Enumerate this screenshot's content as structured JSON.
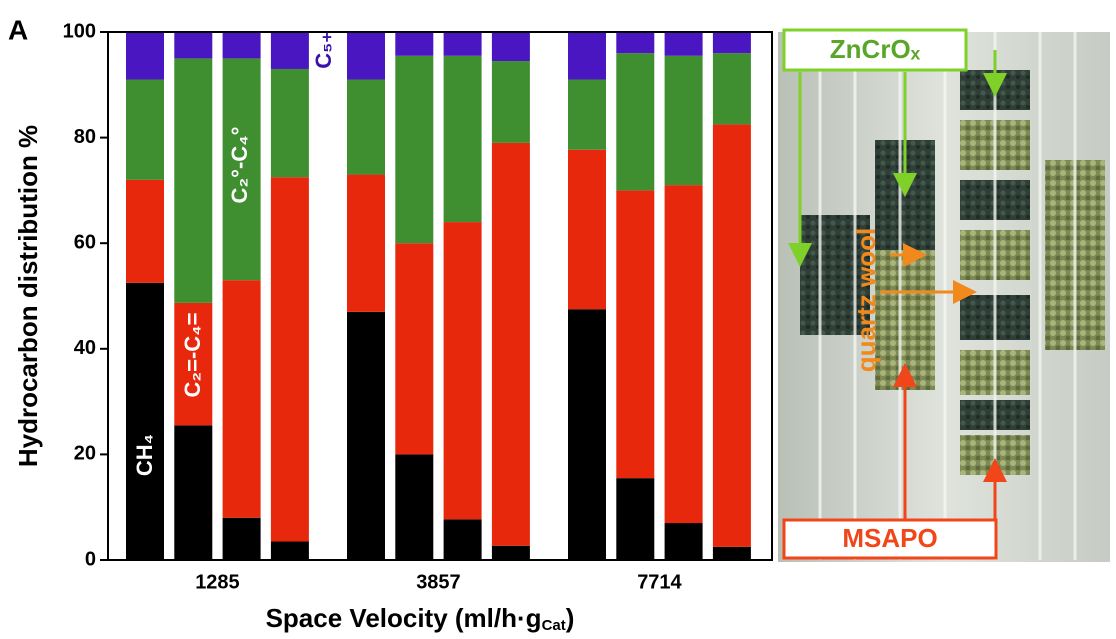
{
  "chart_data": {
    "type": "stacked-bar",
    "panel_label": "A",
    "y_label": "Hydrocarbon distribution %",
    "x_label": [
      "Space Velocity (ml/h·g",
      "Cat",
      ")"
    ],
    "categories": [
      "1285",
      "3857",
      "7714"
    ],
    "series": [
      {
        "name": "CH₄",
        "color": "#000000",
        "label_color": "#ffffff",
        "values": [
          [
            52.5,
            25.5,
            8,
            3.5
          ],
          [
            47,
            20,
            7.7,
            2.7
          ],
          [
            47.5,
            15.5,
            7,
            2.5
          ]
        ]
      },
      {
        "name": "C₂=-C₄=",
        "color": "#e8280c",
        "label_color": "#ffffff",
        "values": [
          [
            19.5,
            23.2,
            45,
            69
          ],
          [
            26,
            40,
            56.3,
            76.3
          ],
          [
            30.2,
            54.5,
            64,
            80
          ]
        ]
      },
      {
        "name": "C₂°-C₄°",
        "color": "#3f8f31",
        "label_color": "#ffffff",
        "values": [
          [
            19,
            46.3,
            42,
            20.5
          ],
          [
            18,
            35.5,
            31.5,
            15.5
          ],
          [
            13.3,
            26,
            24.5,
            13.5
          ]
        ]
      },
      {
        "name": "C₅₊",
        "color": "#4a16c2",
        "label_color": "#3a12a8",
        "values": [
          [
            9,
            5,
            5,
            7
          ],
          [
            9,
            4.5,
            4.5,
            5.5
          ],
          [
            9,
            4,
            4.5,
            4
          ]
        ]
      }
    ],
    "ylim": [
      0,
      100
    ],
    "yticks": [
      0,
      20,
      40,
      60,
      80,
      100
    ],
    "annotations": [
      "ZnCrOₓ",
      "quartz wool",
      "MSAPO"
    ]
  }
}
